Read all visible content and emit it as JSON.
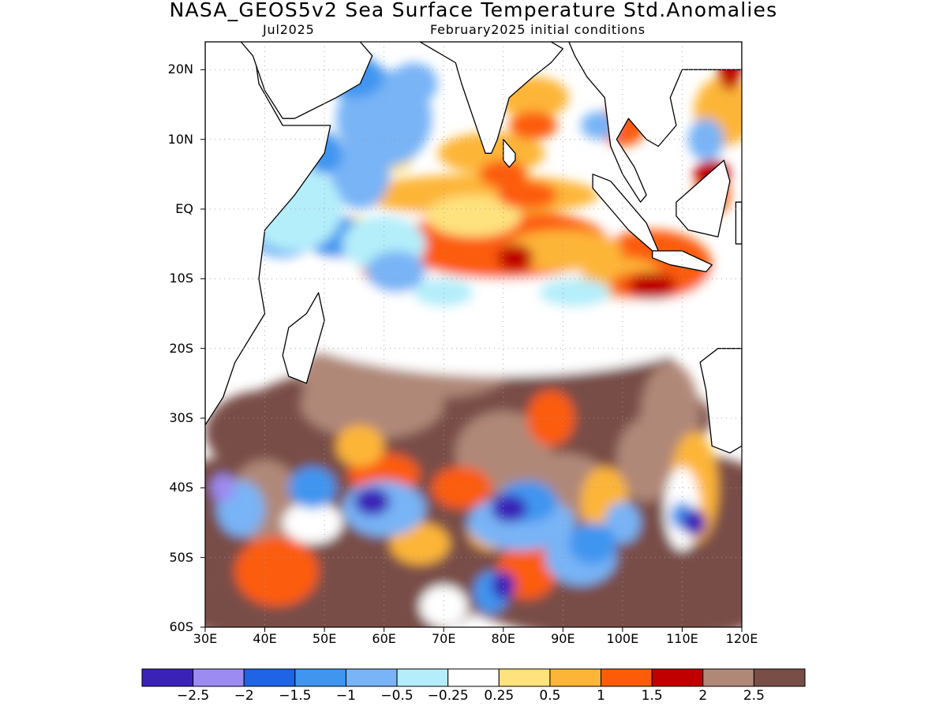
{
  "title": "NASA_GEOS5v2 Sea Surface Temperature Std.Anomalies",
  "subtitle_left": "Jul2025",
  "subtitle_right": "February2025 initial conditions",
  "map": {
    "lon_range": [
      30,
      120
    ],
    "lat_range": [
      -60,
      24
    ],
    "lat_ticks": [
      {
        "lat": 20,
        "label": "20N"
      },
      {
        "lat": 10,
        "label": "10N"
      },
      {
        "lat": 0,
        "label": "EQ"
      },
      {
        "lat": -10,
        "label": "10S"
      },
      {
        "lat": -20,
        "label": "20S"
      },
      {
        "lat": -30,
        "label": "30S"
      },
      {
        "lat": -40,
        "label": "40S"
      },
      {
        "lat": -50,
        "label": "50S"
      },
      {
        "lat": -60,
        "label": "60S"
      }
    ],
    "lon_ticks": [
      {
        "lon": 30,
        "label": "30E"
      },
      {
        "lon": 40,
        "label": "40E"
      },
      {
        "lon": 50,
        "label": "50E"
      },
      {
        "lon": 60,
        "label": "60E"
      },
      {
        "lon": 70,
        "label": "70E"
      },
      {
        "lon": 80,
        "label": "80E"
      },
      {
        "lon": 90,
        "label": "90E"
      },
      {
        "lon": 100,
        "label": "100E"
      },
      {
        "lon": 110,
        "label": "110E"
      },
      {
        "lon": 120,
        "label": "120E"
      }
    ],
    "gridlines": "dotted"
  },
  "colorbar": {
    "colors": [
      "#3a22b8",
      "#9c8cf2",
      "#1f63e6",
      "#3f95f0",
      "#78b4f6",
      "#b4eefa",
      "#ffffff",
      "#fee27e",
      "#fdb537",
      "#fc5c07",
      "#c00000",
      "#b08878",
      "#794e46"
    ],
    "labels": [
      "−2.5",
      "−2",
      "−1.5",
      "−1",
      "−0.5",
      "−0.25",
      "0.25",
      "0.5",
      "1",
      "1.5",
      "2",
      "2.5"
    ]
  }
}
